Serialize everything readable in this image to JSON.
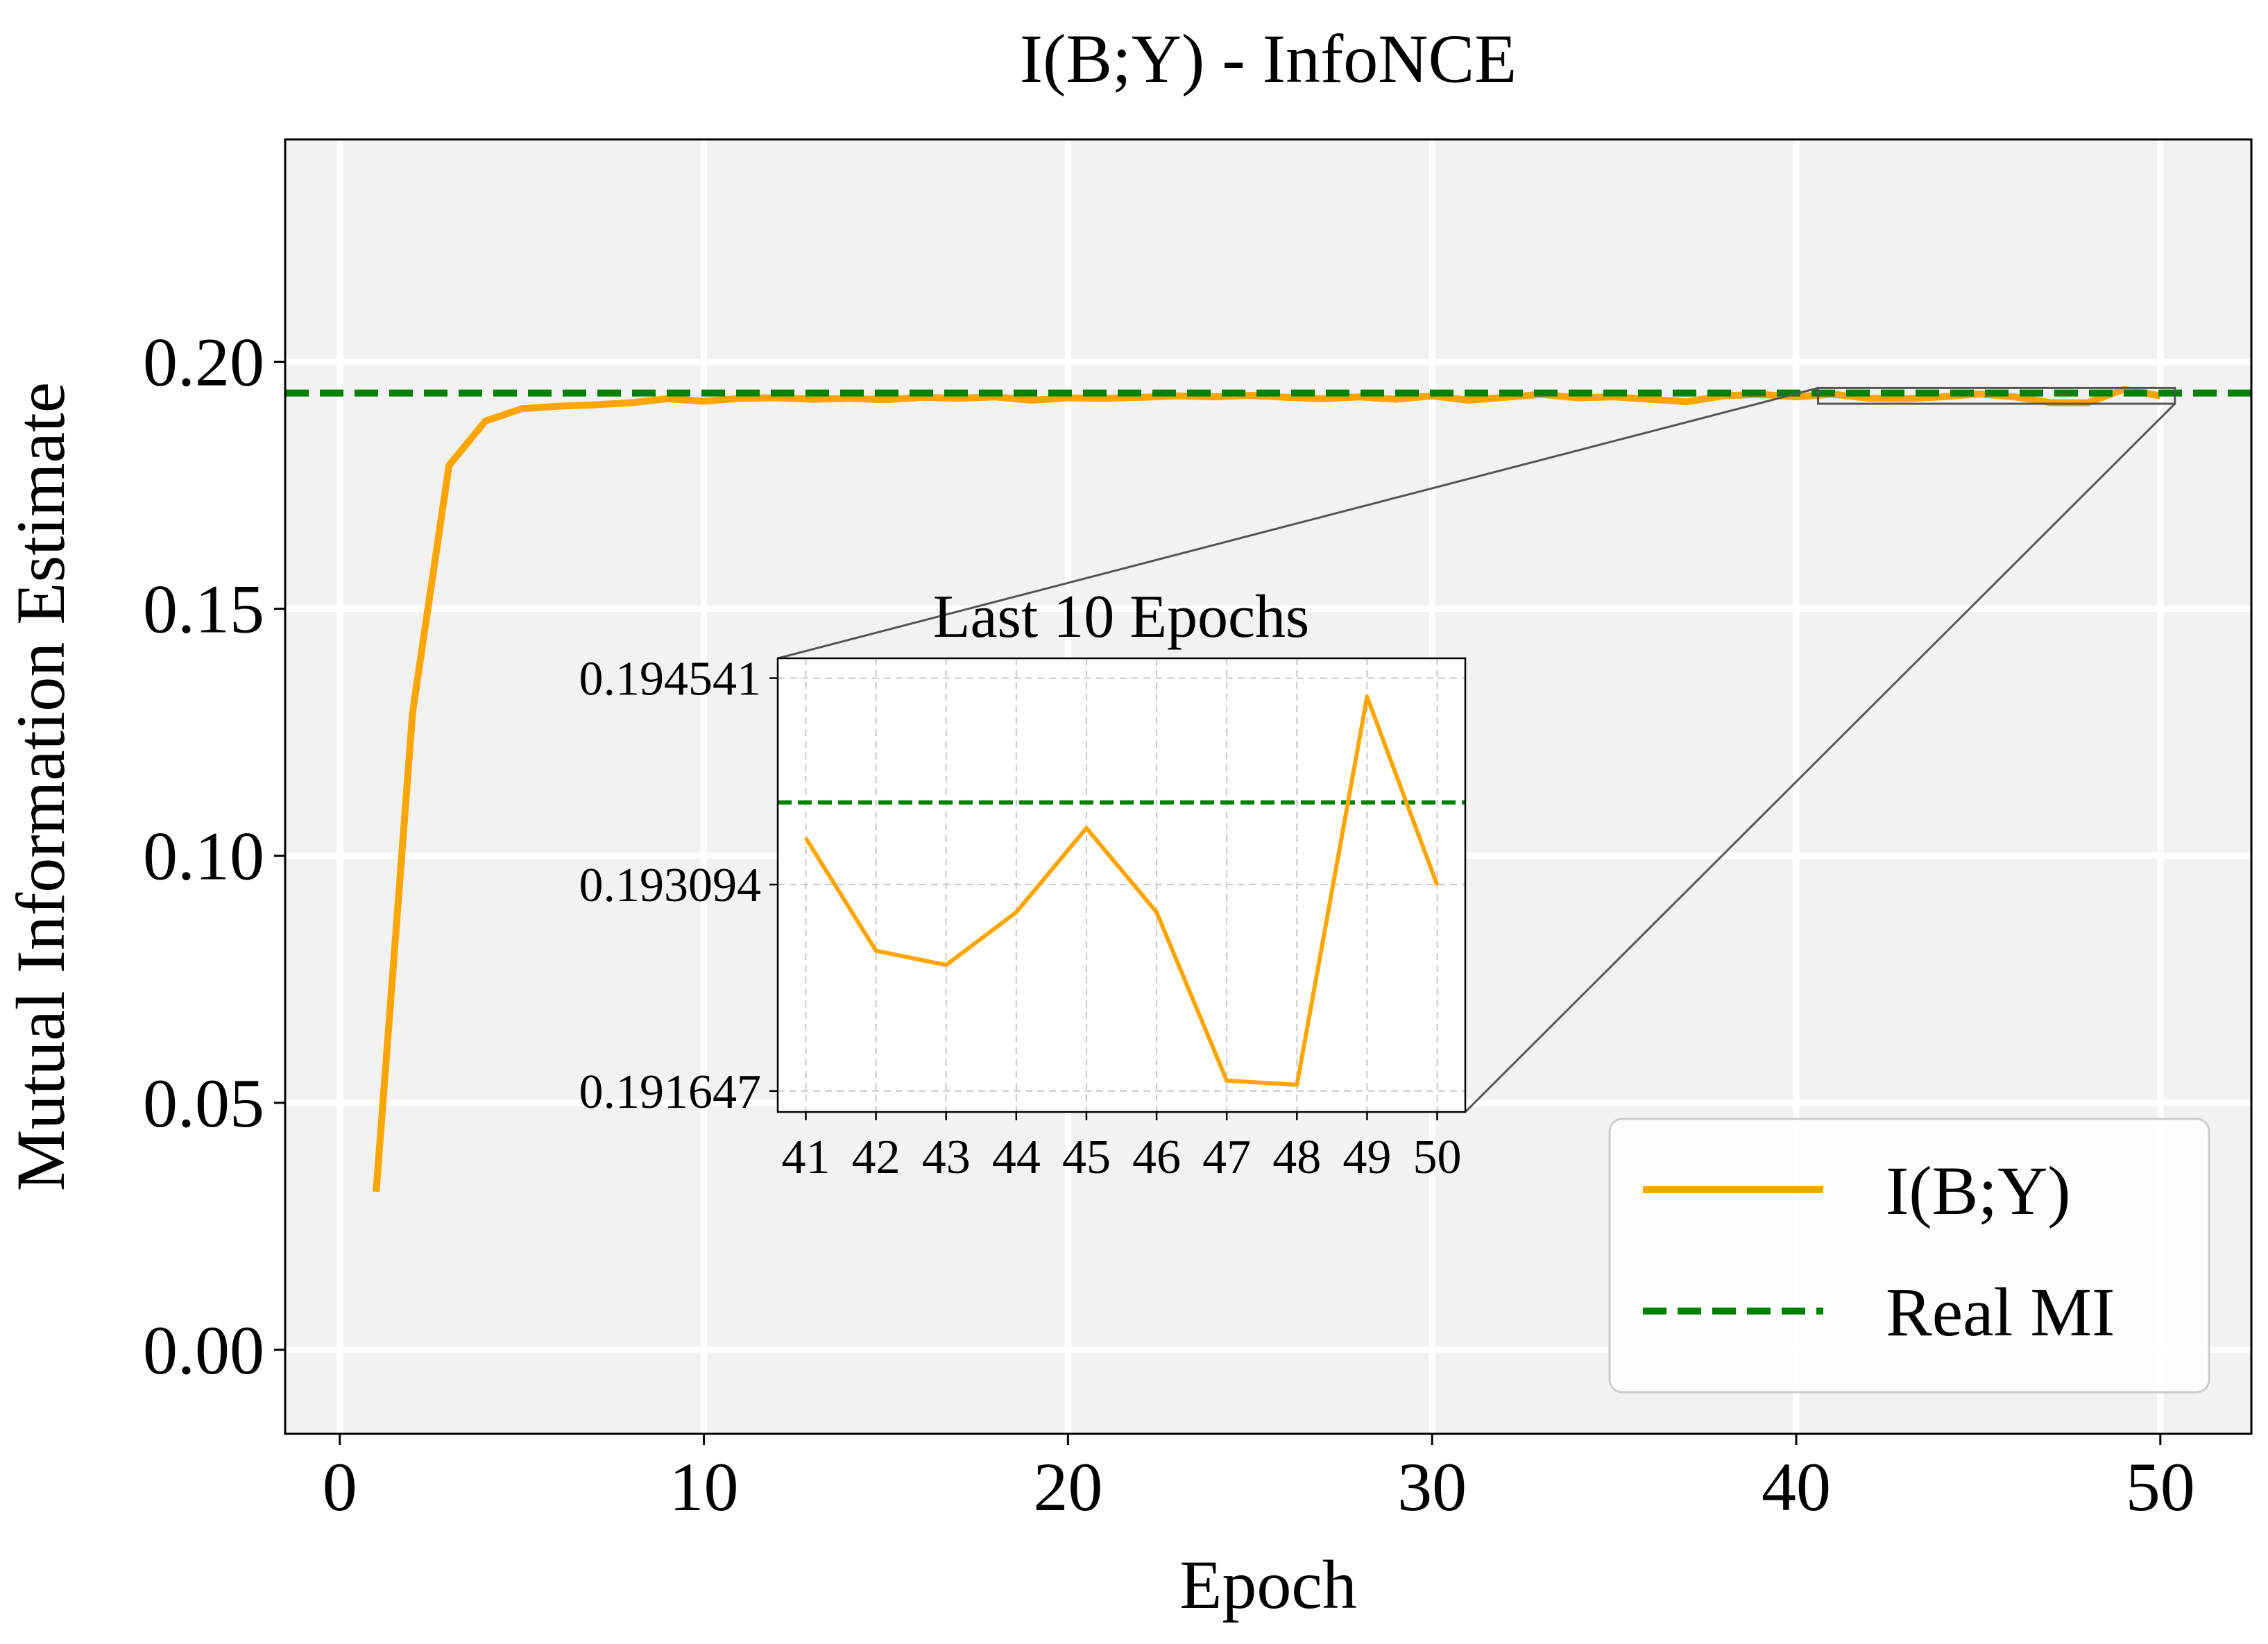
{
  "chart_data": {
    "type": "line",
    "title": "I(B;Y) - InfoNCE",
    "xlabel": "Epoch",
    "ylabel": "Mutual Information Estimate",
    "xlim": [
      -1.5,
      52.5
    ],
    "ylim": [
      -0.017,
      0.245
    ],
    "xticks": [
      0,
      10,
      20,
      30,
      40,
      50
    ],
    "yticks": [
      0.0,
      0.05,
      0.1,
      0.15,
      0.2
    ],
    "xtick_labels": [
      "0",
      "10",
      "20",
      "30",
      "40",
      "50"
    ],
    "ytick_labels": [
      "0.00",
      "0.05",
      "0.10",
      "0.15",
      "0.20"
    ],
    "grid": true,
    "legend_position": "bottom-right",
    "series": [
      {
        "name": "I(B;Y)",
        "color": "#FFA500",
        "style": "solid",
        "x": [
          1,
          2,
          3,
          4,
          5,
          6,
          7,
          8,
          9,
          10,
          11,
          12,
          13,
          14,
          15,
          16,
          17,
          18,
          19,
          20,
          21,
          22,
          23,
          24,
          25,
          26,
          27,
          28,
          29,
          30,
          31,
          32,
          33,
          34,
          35,
          36,
          37,
          38,
          39,
          40,
          41,
          42,
          43,
          44,
          45,
          46,
          47,
          48,
          49,
          50
        ],
        "values": [
          0.032,
          0.129,
          0.179,
          0.188,
          0.1905,
          0.191,
          0.1913,
          0.1917,
          0.1925,
          0.192,
          0.1926,
          0.1927,
          0.1924,
          0.1926,
          0.1923,
          0.1928,
          0.1926,
          0.1929,
          0.1922,
          0.1927,
          0.1926,
          0.1928,
          0.1931,
          0.1929,
          0.1932,
          0.1928,
          0.1925,
          0.1929,
          0.1924,
          0.1931,
          0.1922,
          0.1928,
          0.1934,
          0.1927,
          0.1929,
          0.1924,
          0.1919,
          0.1931,
          0.1934,
          0.1929,
          0.19342,
          0.19263,
          0.19253,
          0.1929,
          0.19349,
          0.1929,
          0.19172,
          0.19169,
          0.19441,
          0.19309
        ]
      },
      {
        "name": "Real MI",
        "color": "#008000",
        "style": "dashed",
        "value": 0.19367
      }
    ],
    "inset": {
      "title": "Last 10 Epochs",
      "xlim": [
        40.6,
        50.4
      ],
      "ylim": [
        0.1915,
        0.19468
      ],
      "xticks": [
        41,
        42,
        43,
        44,
        45,
        46,
        47,
        48,
        49,
        50
      ],
      "xtick_labels": [
        "41",
        "42",
        "43",
        "44",
        "45",
        "46",
        "47",
        "48",
        "49",
        "50"
      ],
      "yticks": [
        0.191647,
        0.193094,
        0.194541
      ],
      "ytick_labels": [
        "0.191647",
        "0.193094",
        "0.194541"
      ],
      "grid": "dashed"
    }
  }
}
